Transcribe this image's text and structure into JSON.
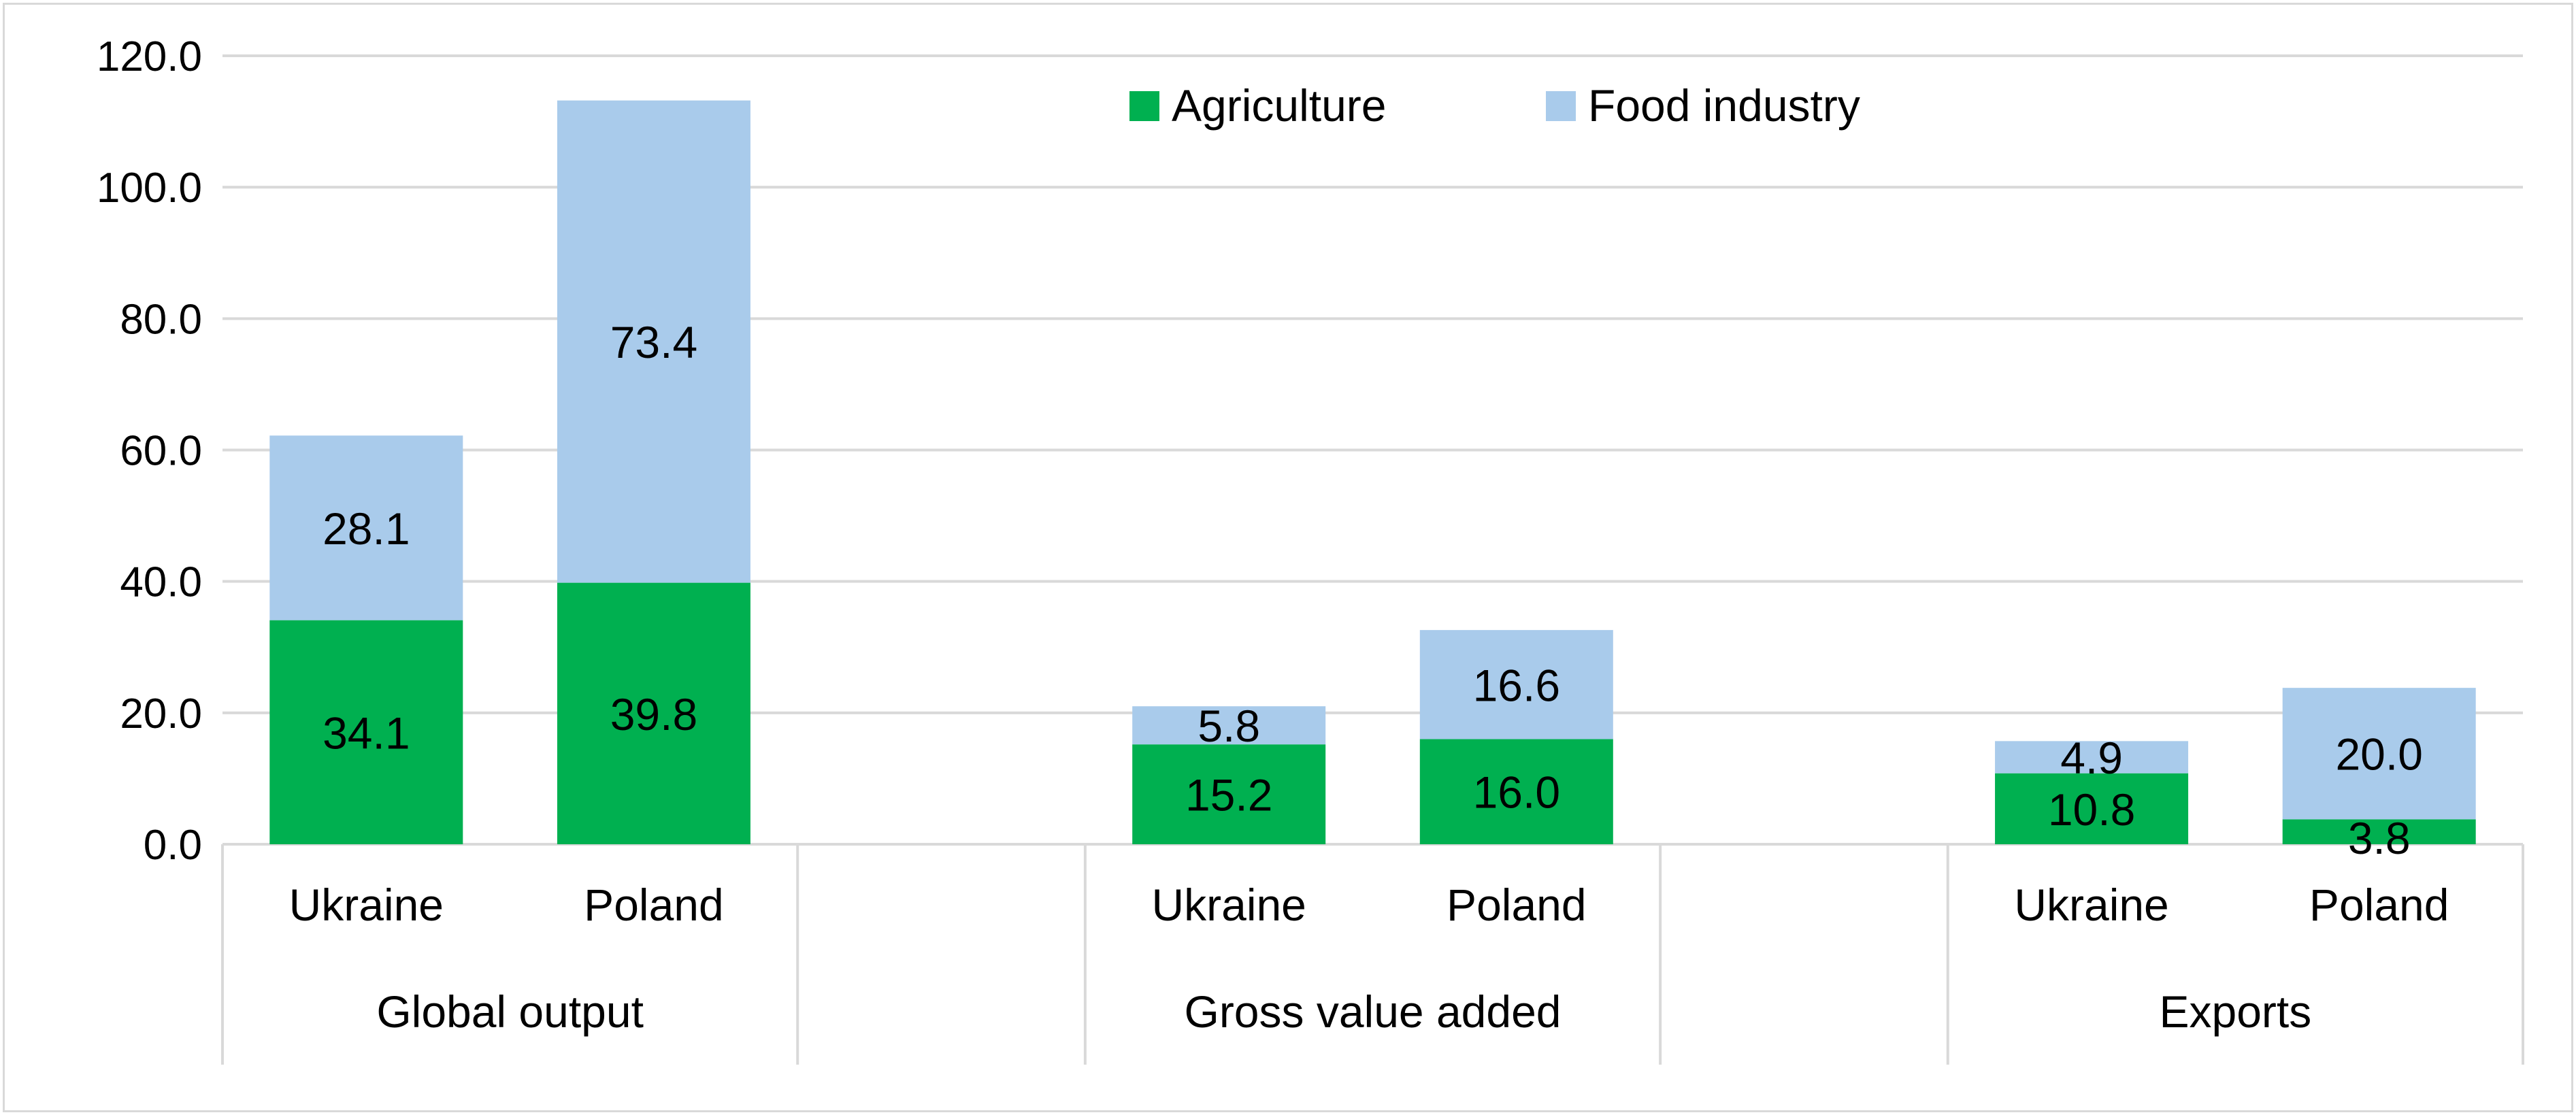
{
  "chart_data": {
    "type": "bar",
    "stacked": true,
    "groups": [
      {
        "label": "Global output",
        "categories": [
          "Ukraine",
          "Poland"
        ]
      },
      {
        "label": "Gross value added",
        "categories": [
          "Ukraine",
          "Poland"
        ]
      },
      {
        "label": "Exports",
        "categories": [
          "Ukraine",
          "Poland"
        ]
      }
    ],
    "categories": [
      "Ukraine",
      "Poland",
      "Ukraine",
      "Poland",
      "Ukraine",
      "Poland"
    ],
    "series": [
      {
        "name": "Agriculture",
        "color": "#00b050",
        "values": [
          34.1,
          39.8,
          15.2,
          16.0,
          10.8,
          3.8
        ]
      },
      {
        "name": "Food industry",
        "color": "#a9cbeb",
        "values": [
          28.1,
          73.4,
          5.8,
          16.6,
          4.9,
          20.0
        ]
      }
    ],
    "ylim": [
      0,
      120
    ],
    "yticks": [
      0,
      20,
      40,
      60,
      80,
      100,
      120
    ],
    "ytick_labels": [
      "0.0",
      "20.0",
      "40.0",
      "60.0",
      "80.0",
      "100.0",
      "120.0"
    ],
    "data_labels": [
      [
        "34.1",
        "39.8",
        "15.2",
        "16.0",
        "10.8",
        "3.8"
      ],
      [
        "28.1",
        "73.4",
        "5.8",
        "16.6",
        "4.9",
        "20.0"
      ]
    ],
    "grid": true,
    "legend": "top-center",
    "title": "",
    "xlabel": "",
    "ylabel": ""
  }
}
